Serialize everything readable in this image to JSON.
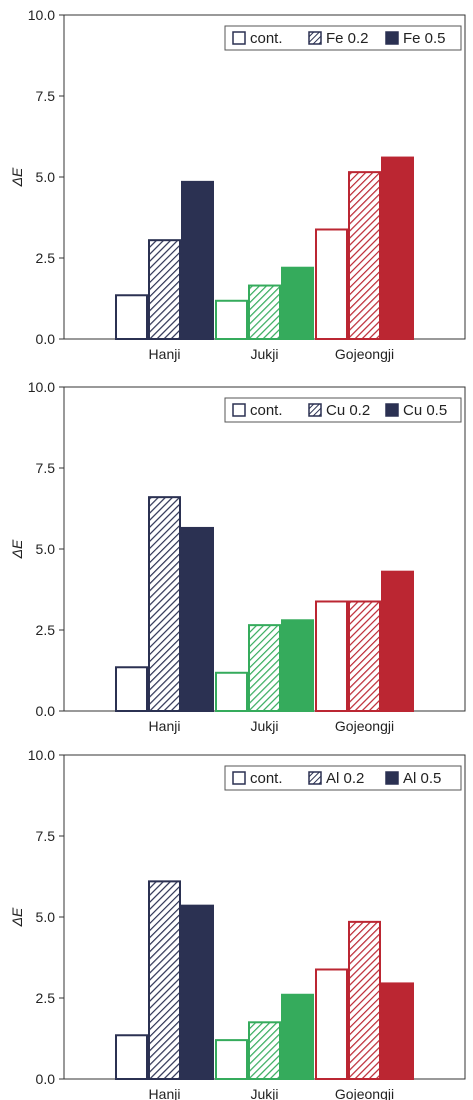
{
  "colors": {
    "Hanji": "#2b3152",
    "Jukji": "#35ab5c",
    "Gojeongji": "#bb2632",
    "axis": "#333333",
    "legend_border": "#555555"
  },
  "chart_data": [
    {
      "type": "bar",
      "categories": [
        "Hanji",
        "Jukji",
        "Gojeongji"
      ],
      "ylabel": "ΔE",
      "ylim": [
        0,
        10
      ],
      "yticks": [
        "0.0",
        "2.5",
        "5.0",
        "7.5",
        "10.0"
      ],
      "legend_position": "top-right",
      "series": [
        {
          "name": "cont.",
          "fill": "open",
          "values": [
            1.35,
            1.18,
            3.38
          ]
        },
        {
          "name": "Fe 0.2",
          "fill": "hatched",
          "values": [
            3.05,
            1.65,
            5.15
          ]
        },
        {
          "name": "Fe 0.5",
          "fill": "solid",
          "values": [
            4.85,
            2.2,
            5.6
          ]
        }
      ]
    },
    {
      "type": "bar",
      "categories": [
        "Hanji",
        "Jukji",
        "Gojeongji"
      ],
      "ylabel": "ΔE",
      "ylim": [
        0,
        10
      ],
      "yticks": [
        "0.0",
        "2.5",
        "5.0",
        "7.5",
        "10.0"
      ],
      "legend_position": "top-right",
      "series": [
        {
          "name": "cont.",
          "fill": "open",
          "values": [
            1.35,
            1.18,
            3.38
          ]
        },
        {
          "name": "Cu 0.2",
          "fill": "hatched",
          "values": [
            6.6,
            2.65,
            3.38
          ]
        },
        {
          "name": "Cu 0.5",
          "fill": "solid",
          "values": [
            5.65,
            2.8,
            4.3
          ]
        }
      ]
    },
    {
      "type": "bar",
      "categories": [
        "Hanji",
        "Jukji",
        "Gojeongji"
      ],
      "ylabel": "ΔE",
      "ylim": [
        0,
        10
      ],
      "yticks": [
        "0.0",
        "2.5",
        "5.0",
        "7.5",
        "10.0"
      ],
      "legend_position": "top-right",
      "series": [
        {
          "name": "cont.",
          "fill": "open",
          "values": [
            1.35,
            1.2,
            3.38
          ]
        },
        {
          "name": "Al 0.2",
          "fill": "hatched",
          "values": [
            6.1,
            1.75,
            4.85
          ]
        },
        {
          "name": "Al 0.5",
          "fill": "solid",
          "values": [
            5.35,
            2.6,
            2.95
          ]
        }
      ]
    }
  ]
}
